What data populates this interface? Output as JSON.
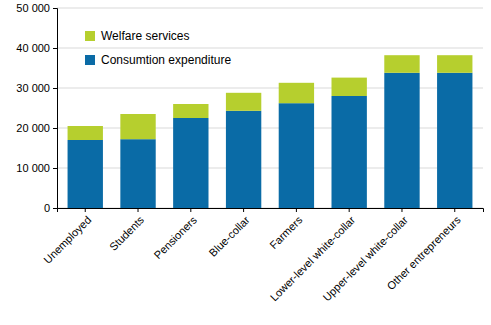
{
  "chart_data": {
    "type": "bar",
    "stacked": true,
    "grid": true,
    "legend": "top-left",
    "categories": [
      "Unemployed",
      "Students",
      "Pensioners",
      "Blue-collar",
      "Farmers",
      "Lower-level white-collar",
      "Upper-level white-collar",
      "Other entrepreneurs"
    ],
    "series": [
      {
        "name": "Consumtion expenditure",
        "color": "#0a6ba6",
        "values": [
          17000,
          17200,
          22500,
          24300,
          26200,
          28000,
          33800,
          33800
        ]
      },
      {
        "name": "Welfare services",
        "color": "#b6cf2e",
        "values": [
          3500,
          6300,
          3500,
          4500,
          5100,
          4600,
          4400,
          4400
        ]
      }
    ],
    "ylim": [
      0,
      50000
    ],
    "yticks": [
      0,
      {
        "value": 10000,
        "label": "10 000"
      },
      {
        "value": 20000,
        "label": "20 000"
      },
      {
        "value": 30000,
        "label": "30 000"
      },
      {
        "value": 40000,
        "label": "40 000"
      },
      {
        "value": 50000,
        "label": "50 000"
      }
    ]
  }
}
